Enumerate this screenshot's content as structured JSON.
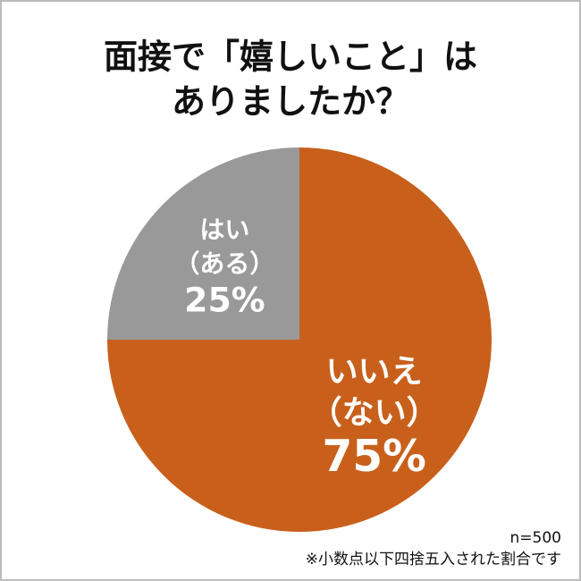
{
  "chart_data": {
    "type": "pie",
    "title_lines": [
      "面接で「嬉しいこと」は",
      "ありましたか？"
    ],
    "categories": [
      "いいえ（ない）",
      "はい（ある）"
    ],
    "values": [
      75,
      25
    ],
    "value_labels": [
      "75%",
      "25%"
    ],
    "colors": [
      "#c8601c",
      "#999999"
    ],
    "notes": [
      "n=500",
      "※小数点以下四捨五入された割合です"
    ]
  }
}
